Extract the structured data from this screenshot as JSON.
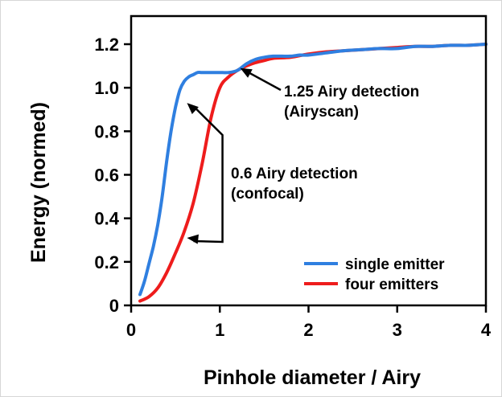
{
  "chart_data": {
    "type": "line",
    "xlabel": "Pinhole diameter / Airy",
    "ylabel": "Energy (normed)",
    "xlim": [
      0,
      4
    ],
    "ylim": [
      0,
      1.3
    ],
    "x_ticks": [
      "0",
      "1",
      "2",
      "3",
      "4"
    ],
    "y_ticks": [
      "0",
      "0.2",
      "0.4",
      "0.6",
      "0.8",
      "1.0",
      "1.2"
    ],
    "grid": false,
    "legend_position": "bottom-right",
    "colors": {
      "single_emitter": "#2f7fe0",
      "four_emitters": "#ee1c1c",
      "axis": "#000000"
    },
    "series": [
      {
        "name": "single emitter",
        "x": [
          0.1,
          0.15,
          0.2,
          0.25,
          0.3,
          0.35,
          0.4,
          0.45,
          0.5,
          0.55,
          0.6,
          0.65,
          0.7,
          0.75,
          0.8,
          0.9,
          1.0,
          1.1,
          1.2,
          1.3,
          1.4,
          1.5,
          1.6,
          1.7,
          1.8,
          1.9,
          2.0,
          2.2,
          2.4,
          2.6,
          2.8,
          3.0,
          3.2,
          3.4,
          3.6,
          3.8,
          4.0
        ],
        "y": [
          0.05,
          0.11,
          0.19,
          0.27,
          0.37,
          0.5,
          0.66,
          0.8,
          0.91,
          0.99,
          1.03,
          1.05,
          1.06,
          1.07,
          1.07,
          1.07,
          1.07,
          1.07,
          1.08,
          1.11,
          1.13,
          1.14,
          1.145,
          1.145,
          1.145,
          1.15,
          1.15,
          1.16,
          1.17,
          1.175,
          1.18,
          1.18,
          1.19,
          1.19,
          1.195,
          1.195,
          1.2
        ]
      },
      {
        "name": "four emitters",
        "x": [
          0.1,
          0.2,
          0.3,
          0.4,
          0.5,
          0.6,
          0.7,
          0.8,
          0.9,
          1.0,
          1.1,
          1.2,
          1.3,
          1.4,
          1.5,
          1.6,
          1.8,
          2.0,
          2.2,
          2.4,
          2.6,
          2.8,
          3.0,
          3.2,
          3.4,
          3.6,
          3.8,
          4.0
        ],
        "y": [
          0.02,
          0.04,
          0.08,
          0.15,
          0.24,
          0.34,
          0.47,
          0.65,
          0.86,
          1.0,
          1.05,
          1.08,
          1.1,
          1.115,
          1.125,
          1.135,
          1.14,
          1.155,
          1.165,
          1.17,
          1.175,
          1.18,
          1.185,
          1.19,
          1.19,
          1.195,
          1.195,
          1.2
        ]
      }
    ],
    "annotations": [
      {
        "lines": [
          "1.25 Airy detection",
          "(Airyscan)"
        ],
        "arrow_target": [
          1.23,
          1.09
        ]
      },
      {
        "lines": [
          "0.6 Airy detection",
          "(confocal)"
        ],
        "arrow_targets": [
          [
            0.63,
            0.93
          ],
          [
            0.63,
            0.31
          ]
        ],
        "bracket_x": 1.03
      }
    ]
  }
}
